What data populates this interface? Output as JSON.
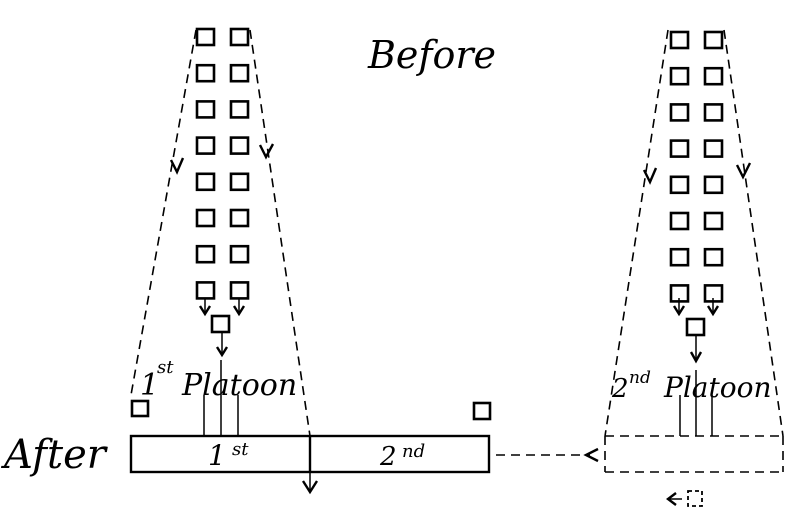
{
  "diagram": {
    "title_before": "Before",
    "title_after": "After",
    "platoon_1_label": {
      "ordinal": "1",
      "suffix": "st",
      "word": "Platoon"
    },
    "platoon_2_label": {
      "ordinal": "2",
      "suffix": "nd",
      "word": "Platoon"
    },
    "block_1_label": {
      "ordinal": "1",
      "suffix": "st"
    },
    "block_2_label": {
      "ordinal": "2",
      "suffix": "nd"
    },
    "column_rows": 8,
    "files_per_row": 2
  }
}
